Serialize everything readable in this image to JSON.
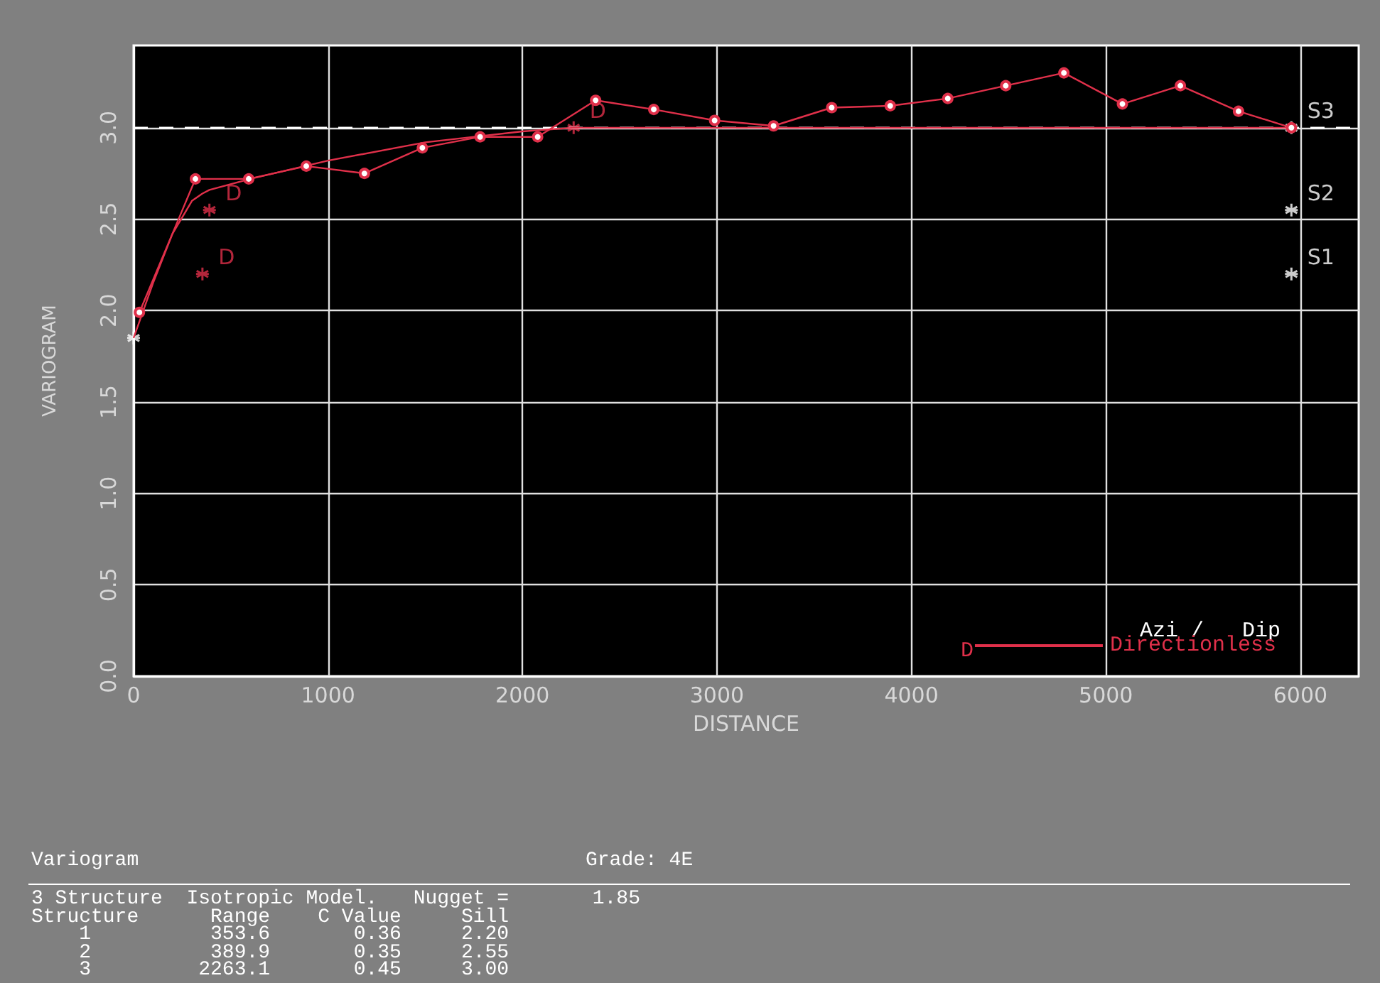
{
  "chart_data": {
    "type": "line",
    "xlabel": "DISTANCE",
    "ylabel": "VARIOGRAM",
    "legend_title": "Azi /   Dip",
    "xlim": [
      0,
      6300
    ],
    "xticks": [
      0,
      1000,
      2000,
      3000,
      4000,
      5000,
      6000
    ],
    "ylim": [
      0,
      3.45
    ],
    "yticks": [
      {
        "value": 0,
        "label": "0.0"
      },
      {
        "value": 0.5,
        "label": "0.5"
      },
      {
        "value": 1,
        "label": "1.0"
      },
      {
        "value": 1.5,
        "label": "1.5"
      },
      {
        "value": 2,
        "label": "2.0"
      },
      {
        "value": 2.5,
        "label": "2.5"
      },
      {
        "value": 3,
        "label": "3.0"
      }
    ],
    "grid": true,
    "legend": "bottom right",
    "ref_lines": [
      {
        "axis": "y",
        "value": 3.0,
        "color": "#ffffff",
        "line_style": "dashed"
      }
    ],
    "series": [
      {
        "name": "Directionless",
        "color": "#e0304a",
        "marker": "circle",
        "x": [
          30,
          318,
          592,
          888,
          1187,
          1485,
          1782,
          2078,
          2376,
          2675,
          2988,
          3291,
          3590,
          3891,
          4187,
          4485,
          4784,
          5085,
          5383,
          5682,
          5954
        ],
        "values": [
          1.99,
          2.72,
          2.72,
          2.79,
          2.75,
          2.89,
          2.95,
          2.95,
          3.15,
          3.1,
          3.04,
          3.01,
          3.11,
          3.12,
          3.16,
          3.23,
          3.3,
          3.13,
          3.23,
          3.09,
          3.0
        ]
      },
      {
        "color": "#e0304a",
        "marker": "none",
        "x": [
          0,
          100,
          200,
          300,
          354,
          390,
          600,
          1000,
          1500,
          2000,
          2263,
          5954
        ],
        "values": [
          1.85,
          2.15,
          2.42,
          2.6,
          2.64,
          2.66,
          2.72,
          2.82,
          2.92,
          2.98,
          3.0,
          3.0
        ]
      },
      {
        "type": "scatter",
        "color": "#e0304a",
        "marker": "cross",
        "x": [
          354,
          390,
          2263
        ],
        "values": [
          2.2,
          2.55,
          3.0
        ],
        "value_labels": [
          "D",
          "D",
          "D"
        ]
      },
      {
        "type": "scatter",
        "color": "#ffffff",
        "marker": "cross",
        "x": [
          0
        ],
        "values": [
          1.85
        ]
      },
      {
        "type": "scatter",
        "color": "#ffffff",
        "marker": "cross",
        "x": [
          5954,
          5954,
          5954
        ],
        "values": [
          2.2,
          2.55,
          3.0
        ],
        "value_labels": [
          "S1",
          "S2",
          "S3"
        ]
      }
    ],
    "annotations": [
      "D",
      "Variogram",
      "Grade: 4E",
      "3 Structure  Isotropic Model.   Nugget =       1.85",
      "Structure      Range    C Value     Sill",
      "    1          353.6       0.36     2.20",
      "    2          389.9       0.35     2.55",
      "    3         2263.1       0.45     3.00"
    ]
  }
}
